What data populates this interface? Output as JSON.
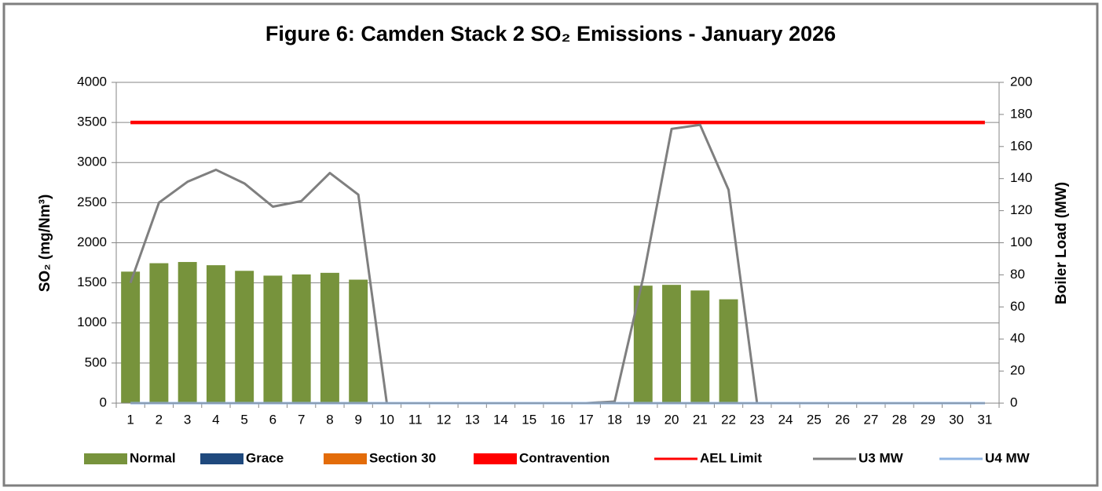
{
  "chart_data": {
    "type": "bar",
    "title": "Figure 6: Camden Stack 2 SO₂ Emissions - January 2026",
    "y_label": "SO₂  (mg/Nm³)",
    "y2_label": "Boiler Load (MW)",
    "categories": [
      "1",
      "2",
      "3",
      "4",
      "5",
      "6",
      "7",
      "8",
      "9",
      "10",
      "11",
      "12",
      "13",
      "14",
      "15",
      "16",
      "17",
      "18",
      "19",
      "20",
      "21",
      "22",
      "23",
      "24",
      "25",
      "26",
      "27",
      "28",
      "29",
      "30",
      "31"
    ],
    "ylim": [
      0,
      4000
    ],
    "yticks": [
      0,
      500,
      1000,
      1500,
      2000,
      2500,
      3000,
      3500,
      4000
    ],
    "y2lim": [
      0,
      200
    ],
    "y2ticks": [
      0,
      20,
      40,
      60,
      80,
      100,
      120,
      140,
      160,
      180,
      200
    ],
    "grid": true,
    "legend": "bottom",
    "series": [
      {
        "name": "Normal",
        "kind": "bar",
        "color": "#77933c",
        "values": [
          1640,
          1745,
          1760,
          1720,
          1650,
          1590,
          1605,
          1625,
          1540,
          null,
          null,
          null,
          null,
          null,
          null,
          null,
          null,
          null,
          1465,
          1475,
          1405,
          1295,
          null,
          null,
          null,
          null,
          null,
          null,
          null,
          null,
          null
        ]
      },
      {
        "name": "Grace",
        "kind": "bar",
        "color": "#1f497d",
        "values": [
          null,
          null,
          null,
          null,
          null,
          null,
          null,
          null,
          null,
          null,
          null,
          null,
          null,
          null,
          null,
          null,
          null,
          null,
          null,
          null,
          null,
          null,
          null,
          null,
          null,
          null,
          null,
          null,
          null,
          null,
          null
        ]
      },
      {
        "name": "Section 30",
        "kind": "bar",
        "color": "#e36c09",
        "values": [
          null,
          null,
          null,
          null,
          null,
          null,
          null,
          null,
          null,
          null,
          null,
          null,
          null,
          null,
          null,
          null,
          null,
          null,
          null,
          null,
          null,
          null,
          null,
          null,
          null,
          null,
          null,
          null,
          null,
          null,
          null
        ]
      },
      {
        "name": "Contravention",
        "kind": "bar",
        "color": "#ff0000",
        "values": [
          null,
          null,
          null,
          null,
          null,
          null,
          null,
          null,
          null,
          null,
          null,
          null,
          null,
          null,
          null,
          null,
          null,
          null,
          null,
          null,
          null,
          null,
          null,
          null,
          null,
          null,
          null,
          null,
          null,
          null,
          null
        ]
      },
      {
        "name": "AEL Limit",
        "kind": "line",
        "color": "#ff0000",
        "values": [
          3500,
          3500,
          3500,
          3500,
          3500,
          3500,
          3500,
          3500,
          3500,
          3500,
          3500,
          3500,
          3500,
          3500,
          3500,
          3500,
          3500,
          3500,
          3500,
          3500,
          3500,
          3500,
          3500,
          3500,
          3500,
          3500,
          3500,
          3500,
          3500,
          3500,
          3500
        ]
      },
      {
        "name": "U3 MW",
        "kind": "line",
        "axis": "y2",
        "color": "#7f7f7f",
        "values": [
          75,
          125,
          138,
          145.5,
          137,
          122.5,
          126,
          143.5,
          130,
          0,
          0,
          0,
          0,
          0,
          0,
          0,
          0,
          1,
          78,
          171,
          173.5,
          133,
          0,
          0,
          0,
          0,
          0,
          0,
          0,
          0,
          0
        ]
      },
      {
        "name": "U4 MW",
        "kind": "line",
        "axis": "y2",
        "color": "#8eb4e3",
        "values": [
          0,
          0,
          0,
          0,
          0,
          0,
          0,
          0,
          0,
          0,
          0,
          0,
          0,
          0,
          0,
          0,
          0,
          0,
          0,
          0,
          0,
          0,
          0,
          0,
          0,
          0,
          0,
          0,
          0,
          0,
          0
        ]
      }
    ]
  }
}
